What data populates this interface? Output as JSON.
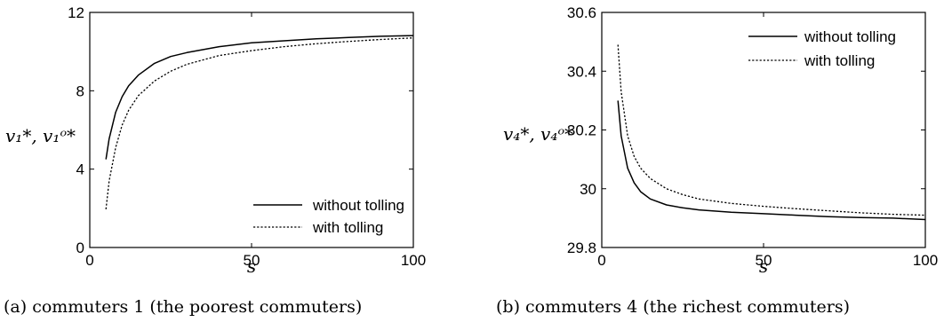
{
  "chart_data": [
    {
      "type": "line",
      "caption": "(a) commuters 1 (the poorest commuters)",
      "xlabel": "s",
      "ylabel": "v₁*, v₁ᵒ*",
      "xlim": [
        0,
        100
      ],
      "ylim": [
        0,
        12
      ],
      "xticks": [
        "0",
        "50",
        "100"
      ],
      "yticks": [
        "0",
        "4",
        "8",
        "12"
      ],
      "legend_position": "bottom-right",
      "grid": false,
      "series": [
        {
          "name": "without tolling",
          "style": "solid",
          "x": [
            5,
            6,
            8,
            10,
            12,
            15,
            20,
            25,
            30,
            40,
            50,
            60,
            70,
            80,
            90,
            100
          ],
          "y": [
            4.5,
            5.55,
            6.9,
            7.7,
            8.25,
            8.8,
            9.4,
            9.75,
            9.95,
            10.25,
            10.45,
            10.55,
            10.65,
            10.72,
            10.78,
            10.82
          ]
        },
        {
          "name": "with tolling",
          "style": "dotted",
          "x": [
            5,
            6,
            8,
            10,
            12,
            15,
            20,
            25,
            30,
            40,
            50,
            60,
            70,
            80,
            90,
            100
          ],
          "y": [
            1.95,
            3.4,
            5.1,
            6.25,
            7.0,
            7.75,
            8.5,
            9.0,
            9.35,
            9.8,
            10.05,
            10.25,
            10.4,
            10.52,
            10.62,
            10.7
          ]
        }
      ]
    },
    {
      "type": "line",
      "caption": "(b) commuters 4 (the richest commuters)",
      "xlabel": "s",
      "ylabel": "v₄*, v₄ᵒ*",
      "xlim": [
        0,
        100
      ],
      "ylim": [
        29.8,
        30.6
      ],
      "xticks": [
        "0",
        "50",
        "100"
      ],
      "yticks": [
        "29.8",
        "30",
        "30.2",
        "30.4",
        "30.6"
      ],
      "legend_position": "top-right",
      "grid": false,
      "series": [
        {
          "name": "without tolling",
          "style": "solid",
          "x": [
            5,
            6,
            8,
            10,
            12,
            15,
            20,
            25,
            30,
            40,
            50,
            60,
            70,
            80,
            90,
            100
          ],
          "y": [
            30.3,
            30.18,
            30.07,
            30.02,
            29.99,
            29.965,
            29.945,
            29.935,
            29.928,
            29.92,
            29.915,
            29.91,
            29.905,
            29.902,
            29.9,
            29.895
          ]
        },
        {
          "name": "with tolling",
          "style": "dotted",
          "x": [
            5,
            6,
            8,
            10,
            12,
            15,
            20,
            25,
            30,
            40,
            50,
            60,
            70,
            80,
            90,
            100
          ],
          "y": [
            30.49,
            30.33,
            30.18,
            30.11,
            30.07,
            30.035,
            30.0,
            29.98,
            29.965,
            29.95,
            29.94,
            29.932,
            29.925,
            29.918,
            29.913,
            29.91
          ]
        }
      ]
    }
  ]
}
